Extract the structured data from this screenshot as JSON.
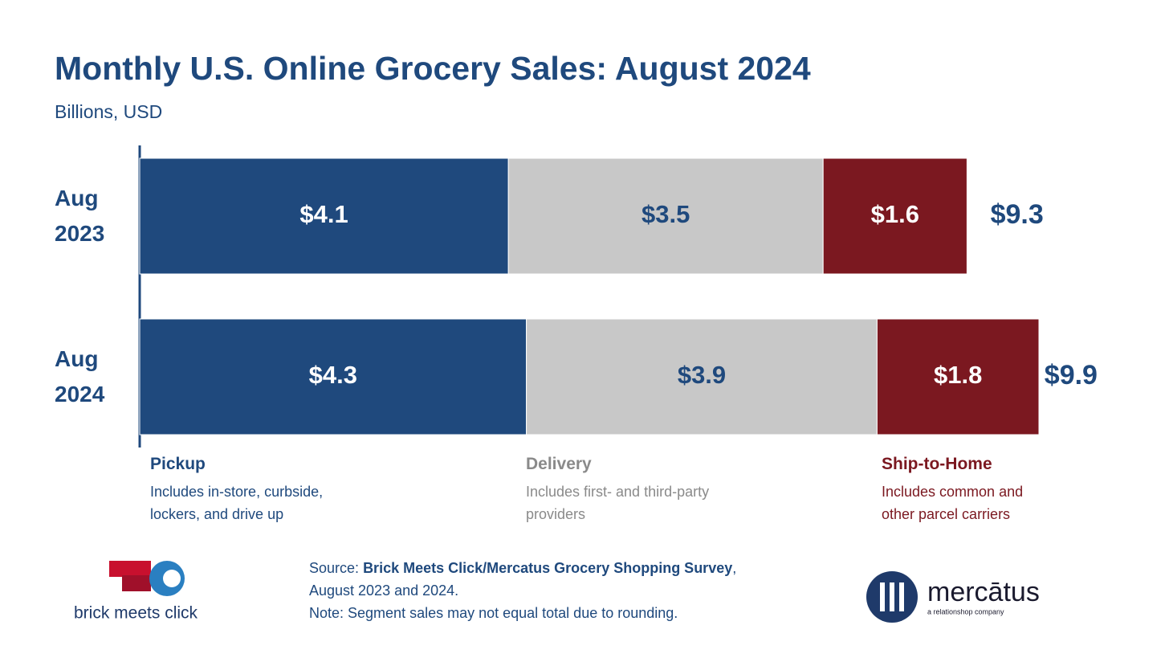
{
  "chart_data": {
    "type": "stacked-bar-horizontal",
    "title": "Monthly U.S. Online Grocery Sales: August 2024",
    "subtitle": "Billions, USD",
    "categories": [
      "Aug 2023",
      "Aug 2024"
    ],
    "series": [
      {
        "name": "Pickup",
        "color": "#1f497d",
        "label_color": "#ffffff",
        "legend_color": "#1f497d",
        "description": "Includes in-store, curbside, lockers, and drive up",
        "values": [
          4.1,
          4.3
        ],
        "value_labels": [
          "$4.1",
          "$4.3"
        ]
      },
      {
        "name": "Delivery",
        "color": "#c8c8c8",
        "label_color": "#1f497d",
        "legend_color": "#8a8a8a",
        "description": "Includes first- and third-party providers",
        "values": [
          3.5,
          3.9
        ],
        "value_labels": [
          "$3.5",
          "$3.9"
        ]
      },
      {
        "name": "Ship-to-Home",
        "color": "#7b1820",
        "label_color": "#ffffff",
        "legend_color": "#7b1820",
        "description": "Includes common and other parcel carriers",
        "values": [
          1.6,
          1.8
        ],
        "value_labels": [
          "$1.6",
          "$1.8"
        ]
      }
    ],
    "totals": [
      9.3,
      9.9
    ],
    "total_labels": [
      "$9.3",
      "$9.9"
    ],
    "source": {
      "label": "Source:",
      "name": "Brick Meets Click/Mercatus Grocery Shopping Survey",
      "rest": ", August 2023 and 2024."
    },
    "note": "Note: Segment sales may not equal total due to rounding."
  },
  "logos": {
    "left": "brick meets click",
    "right": "mercātus",
    "right_tagline": "a relationshop company"
  }
}
